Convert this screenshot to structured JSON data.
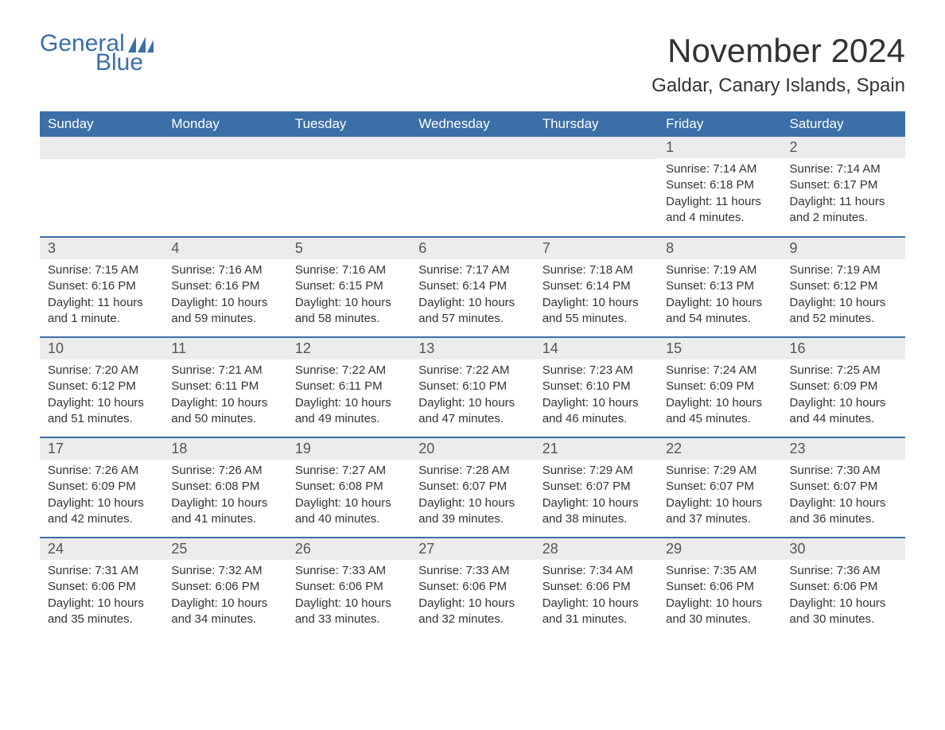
{
  "brand": {
    "text_general": "General",
    "text_blue": "Blue",
    "color": "#3b6fa8"
  },
  "header": {
    "month_title": "November 2024",
    "location": "Galdar, Canary Islands, Spain"
  },
  "styling": {
    "header_bg": "#3b6fa8",
    "header_text_color": "#ffffff",
    "daynum_bg": "#ececec",
    "row_border_color": "#3b6fa8",
    "body_text_color": "#333333",
    "page_bg": "#ffffff",
    "month_title_fontsize": 42,
    "location_fontsize": 24,
    "weekday_fontsize": 17,
    "daynum_fontsize": 18,
    "body_fontsize": 15
  },
  "weekdays": [
    "Sunday",
    "Monday",
    "Tuesday",
    "Wednesday",
    "Thursday",
    "Friday",
    "Saturday"
  ],
  "grid": [
    [
      null,
      null,
      null,
      null,
      null,
      {
        "num": "1",
        "sunrise": "Sunrise: 7:14 AM",
        "sunset": "Sunset: 6:18 PM",
        "daylight": "Daylight: 11 hours and 4 minutes."
      },
      {
        "num": "2",
        "sunrise": "Sunrise: 7:14 AM",
        "sunset": "Sunset: 6:17 PM",
        "daylight": "Daylight: 11 hours and 2 minutes."
      }
    ],
    [
      {
        "num": "3",
        "sunrise": "Sunrise: 7:15 AM",
        "sunset": "Sunset: 6:16 PM",
        "daylight": "Daylight: 11 hours and 1 minute."
      },
      {
        "num": "4",
        "sunrise": "Sunrise: 7:16 AM",
        "sunset": "Sunset: 6:16 PM",
        "daylight": "Daylight: 10 hours and 59 minutes."
      },
      {
        "num": "5",
        "sunrise": "Sunrise: 7:16 AM",
        "sunset": "Sunset: 6:15 PM",
        "daylight": "Daylight: 10 hours and 58 minutes."
      },
      {
        "num": "6",
        "sunrise": "Sunrise: 7:17 AM",
        "sunset": "Sunset: 6:14 PM",
        "daylight": "Daylight: 10 hours and 57 minutes."
      },
      {
        "num": "7",
        "sunrise": "Sunrise: 7:18 AM",
        "sunset": "Sunset: 6:14 PM",
        "daylight": "Daylight: 10 hours and 55 minutes."
      },
      {
        "num": "8",
        "sunrise": "Sunrise: 7:19 AM",
        "sunset": "Sunset: 6:13 PM",
        "daylight": "Daylight: 10 hours and 54 minutes."
      },
      {
        "num": "9",
        "sunrise": "Sunrise: 7:19 AM",
        "sunset": "Sunset: 6:12 PM",
        "daylight": "Daylight: 10 hours and 52 minutes."
      }
    ],
    [
      {
        "num": "10",
        "sunrise": "Sunrise: 7:20 AM",
        "sunset": "Sunset: 6:12 PM",
        "daylight": "Daylight: 10 hours and 51 minutes."
      },
      {
        "num": "11",
        "sunrise": "Sunrise: 7:21 AM",
        "sunset": "Sunset: 6:11 PM",
        "daylight": "Daylight: 10 hours and 50 minutes."
      },
      {
        "num": "12",
        "sunrise": "Sunrise: 7:22 AM",
        "sunset": "Sunset: 6:11 PM",
        "daylight": "Daylight: 10 hours and 49 minutes."
      },
      {
        "num": "13",
        "sunrise": "Sunrise: 7:22 AM",
        "sunset": "Sunset: 6:10 PM",
        "daylight": "Daylight: 10 hours and 47 minutes."
      },
      {
        "num": "14",
        "sunrise": "Sunrise: 7:23 AM",
        "sunset": "Sunset: 6:10 PM",
        "daylight": "Daylight: 10 hours and 46 minutes."
      },
      {
        "num": "15",
        "sunrise": "Sunrise: 7:24 AM",
        "sunset": "Sunset: 6:09 PM",
        "daylight": "Daylight: 10 hours and 45 minutes."
      },
      {
        "num": "16",
        "sunrise": "Sunrise: 7:25 AM",
        "sunset": "Sunset: 6:09 PM",
        "daylight": "Daylight: 10 hours and 44 minutes."
      }
    ],
    [
      {
        "num": "17",
        "sunrise": "Sunrise: 7:26 AM",
        "sunset": "Sunset: 6:09 PM",
        "daylight": "Daylight: 10 hours and 42 minutes."
      },
      {
        "num": "18",
        "sunrise": "Sunrise: 7:26 AM",
        "sunset": "Sunset: 6:08 PM",
        "daylight": "Daylight: 10 hours and 41 minutes."
      },
      {
        "num": "19",
        "sunrise": "Sunrise: 7:27 AM",
        "sunset": "Sunset: 6:08 PM",
        "daylight": "Daylight: 10 hours and 40 minutes."
      },
      {
        "num": "20",
        "sunrise": "Sunrise: 7:28 AM",
        "sunset": "Sunset: 6:07 PM",
        "daylight": "Daylight: 10 hours and 39 minutes."
      },
      {
        "num": "21",
        "sunrise": "Sunrise: 7:29 AM",
        "sunset": "Sunset: 6:07 PM",
        "daylight": "Daylight: 10 hours and 38 minutes."
      },
      {
        "num": "22",
        "sunrise": "Sunrise: 7:29 AM",
        "sunset": "Sunset: 6:07 PM",
        "daylight": "Daylight: 10 hours and 37 minutes."
      },
      {
        "num": "23",
        "sunrise": "Sunrise: 7:30 AM",
        "sunset": "Sunset: 6:07 PM",
        "daylight": "Daylight: 10 hours and 36 minutes."
      }
    ],
    [
      {
        "num": "24",
        "sunrise": "Sunrise: 7:31 AM",
        "sunset": "Sunset: 6:06 PM",
        "daylight": "Daylight: 10 hours and 35 minutes."
      },
      {
        "num": "25",
        "sunrise": "Sunrise: 7:32 AM",
        "sunset": "Sunset: 6:06 PM",
        "daylight": "Daylight: 10 hours and 34 minutes."
      },
      {
        "num": "26",
        "sunrise": "Sunrise: 7:33 AM",
        "sunset": "Sunset: 6:06 PM",
        "daylight": "Daylight: 10 hours and 33 minutes."
      },
      {
        "num": "27",
        "sunrise": "Sunrise: 7:33 AM",
        "sunset": "Sunset: 6:06 PM",
        "daylight": "Daylight: 10 hours and 32 minutes."
      },
      {
        "num": "28",
        "sunrise": "Sunrise: 7:34 AM",
        "sunset": "Sunset: 6:06 PM",
        "daylight": "Daylight: 10 hours and 31 minutes."
      },
      {
        "num": "29",
        "sunrise": "Sunrise: 7:35 AM",
        "sunset": "Sunset: 6:06 PM",
        "daylight": "Daylight: 10 hours and 30 minutes."
      },
      {
        "num": "30",
        "sunrise": "Sunrise: 7:36 AM",
        "sunset": "Sunset: 6:06 PM",
        "daylight": "Daylight: 10 hours and 30 minutes."
      }
    ]
  ]
}
